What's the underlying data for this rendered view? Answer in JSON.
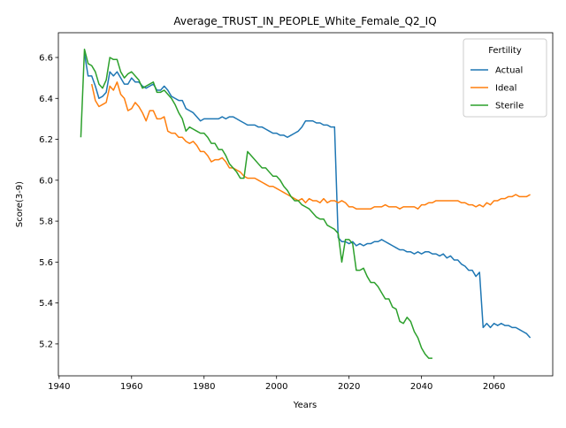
{
  "chart_data": {
    "type": "line",
    "title": "Average_TRUST_IN_PEOPLE_White_Female_Q2_IQ",
    "x_label": "Years",
    "y_label": "Score(3-9)",
    "legend_title": "Fertility",
    "legend": "upper right",
    "x": [
      1946,
      1947,
      1948,
      1949,
      1950,
      1951,
      1952,
      1953,
      1954,
      1955,
      1956,
      1957,
      1958,
      1959,
      1960,
      1961,
      1962,
      1963,
      1964,
      1965,
      1966,
      1967,
      1968,
      1969,
      1970,
      1971,
      1972,
      1973,
      1974,
      1975,
      1976,
      1977,
      1978,
      1979,
      1980,
      1981,
      1982,
      1983,
      1984,
      1985,
      1986,
      1987,
      1988,
      1989,
      1990,
      1991,
      1992,
      1993,
      1994,
      1995,
      1996,
      1997,
      1998,
      1999,
      2000,
      2001,
      2002,
      2003,
      2004,
      2005,
      2006,
      2007,
      2008,
      2009,
      2010,
      2011,
      2012,
      2013,
      2014,
      2015,
      2016,
      2017,
      2018,
      2019,
      2020,
      2021,
      2022,
      2023,
      2024,
      2025,
      2026,
      2027,
      2028,
      2029,
      2030,
      2031,
      2032,
      2033,
      2034,
      2035,
      2036,
      2037,
      2038,
      2039,
      2040,
      2041,
      2042,
      2043,
      2044,
      2045,
      2046,
      2047,
      2048,
      2049,
      2050,
      2051,
      2052,
      2053,
      2054,
      2055,
      2056,
      2057,
      2058,
      2059,
      2060,
      2061,
      2062,
      2063,
      2064,
      2065,
      2066,
      2067,
      2068,
      2069,
      2070
    ],
    "series": [
      {
        "name": "Actual",
        "color": "#1f77b4",
        "values": [
          null,
          6.62,
          6.51,
          6.51,
          6.46,
          6.4,
          6.41,
          6.43,
          6.53,
          6.51,
          6.53,
          6.5,
          6.47,
          6.47,
          6.5,
          6.48,
          6.48,
          6.46,
          6.45,
          6.46,
          6.47,
          6.44,
          6.44,
          6.46,
          6.44,
          6.41,
          6.4,
          6.39,
          6.39,
          6.35,
          6.34,
          6.33,
          6.31,
          6.29,
          6.3,
          6.3,
          6.3,
          6.3,
          6.3,
          6.31,
          6.3,
          6.31,
          6.31,
          6.3,
          6.29,
          6.28,
          6.27,
          6.27,
          6.27,
          6.26,
          6.26,
          6.25,
          6.24,
          6.23,
          6.23,
          6.22,
          6.22,
          6.21,
          6.22,
          6.23,
          6.24,
          6.26,
          6.29,
          6.29,
          6.29,
          6.28,
          6.28,
          6.27,
          6.27,
          6.26,
          6.26,
          5.72,
          5.7,
          5.7,
          5.69,
          5.7,
          5.68,
          5.69,
          5.68,
          5.69,
          5.69,
          5.7,
          5.7,
          5.71,
          5.7,
          5.69,
          5.68,
          5.67,
          5.66,
          5.66,
          5.65,
          5.65,
          5.64,
          5.65,
          5.64,
          5.65,
          5.65,
          5.64,
          5.64,
          5.63,
          5.64,
          5.62,
          5.63,
          5.61,
          5.61,
          5.59,
          5.58,
          5.56,
          5.56,
          5.53,
          5.55,
          5.28,
          5.3,
          5.28,
          5.3,
          5.29,
          5.3,
          5.29,
          5.29,
          5.28,
          5.28,
          5.27,
          5.26,
          5.25,
          5.23
        ]
      },
      {
        "name": "Ideal",
        "color": "#ff7f0e",
        "values": [
          null,
          null,
          null,
          6.47,
          6.39,
          6.36,
          6.37,
          6.38,
          6.46,
          6.44,
          6.48,
          6.42,
          6.4,
          6.34,
          6.35,
          6.38,
          6.36,
          6.33,
          6.29,
          6.34,
          6.34,
          6.3,
          6.3,
          6.31,
          6.24,
          6.23,
          6.23,
          6.21,
          6.21,
          6.19,
          6.18,
          6.19,
          6.17,
          6.14,
          6.14,
          6.12,
          6.09,
          6.1,
          6.1,
          6.11,
          6.09,
          6.06,
          6.06,
          6.05,
          6.04,
          6.02,
          6.01,
          6.01,
          6.01,
          6.0,
          5.99,
          5.98,
          5.97,
          5.97,
          5.96,
          5.95,
          5.94,
          5.93,
          5.92,
          5.91,
          5.9,
          5.91,
          5.89,
          5.91,
          5.9,
          5.9,
          5.89,
          5.91,
          5.89,
          5.9,
          5.9,
          5.89,
          5.9,
          5.89,
          5.87,
          5.87,
          5.86,
          5.86,
          5.86,
          5.86,
          5.86,
          5.87,
          5.87,
          5.87,
          5.88,
          5.87,
          5.87,
          5.87,
          5.86,
          5.87,
          5.87,
          5.87,
          5.87,
          5.86,
          5.88,
          5.88,
          5.89,
          5.89,
          5.9,
          5.9,
          5.9,
          5.9,
          5.9,
          5.9,
          5.9,
          5.89,
          5.89,
          5.88,
          5.88,
          5.87,
          5.88,
          5.87,
          5.89,
          5.88,
          5.9,
          5.9,
          5.91,
          5.91,
          5.92,
          5.92,
          5.93,
          5.92,
          5.92,
          5.92,
          5.93
        ]
      },
      {
        "name": "Sterile",
        "color": "#2ca02c",
        "values": [
          6.21,
          6.64,
          6.57,
          6.56,
          6.53,
          6.47,
          6.45,
          6.49,
          6.6,
          6.59,
          6.59,
          6.53,
          6.5,
          6.52,
          6.53,
          6.51,
          6.49,
          6.45,
          6.46,
          6.47,
          6.48,
          6.43,
          6.43,
          6.44,
          6.42,
          6.4,
          6.37,
          6.33,
          6.3,
          6.24,
          6.26,
          6.25,
          6.24,
          6.23,
          6.23,
          6.21,
          6.18,
          6.18,
          6.15,
          6.15,
          6.12,
          6.08,
          6.06,
          6.04,
          6.01,
          6.01,
          6.14,
          6.12,
          6.1,
          6.08,
          6.06,
          6.06,
          6.04,
          6.02,
          6.02,
          6.0,
          5.97,
          5.95,
          5.92,
          5.9,
          5.9,
          5.88,
          5.87,
          5.86,
          5.84,
          5.82,
          5.81,
          5.81,
          5.78,
          5.77,
          5.76,
          5.74,
          5.6,
          5.71,
          5.71,
          5.69,
          5.56,
          5.56,
          5.57,
          5.53,
          5.5,
          5.5,
          5.48,
          5.45,
          5.42,
          5.42,
          5.38,
          5.37,
          5.31,
          5.3,
          5.33,
          5.31,
          5.26,
          5.23,
          5.18,
          5.15,
          5.13,
          5.13,
          null,
          null,
          null,
          null,
          null,
          null,
          null,
          null,
          null,
          null,
          null,
          null,
          null,
          null,
          null,
          null,
          null,
          null,
          null,
          null,
          null,
          null,
          null,
          null,
          null,
          null,
          null
        ]
      }
    ],
    "xlim": [
      1939.8,
      2076.2
    ],
    "xticks": [
      1940,
      1960,
      1980,
      2000,
      2020,
      2040,
      2060
    ],
    "ylim": [
      5.044,
      6.721
    ],
    "yticks": [
      5.2,
      5.4,
      5.6,
      5.8,
      {
        "value": 6,
        "label": "6.0"
      },
      6.2,
      6.4,
      6.6
    ]
  }
}
